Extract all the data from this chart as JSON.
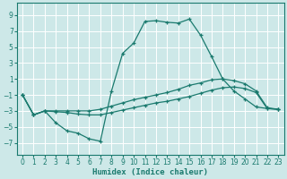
{
  "xlabel": "Humidex (Indice chaleur)",
  "background_color": "#cde8e8",
  "grid_color": "#b0d8d8",
  "line_color": "#1a7a6e",
  "xlim": [
    -0.5,
    23.5
  ],
  "ylim": [
    -8.5,
    10.5
  ],
  "xticks": [
    0,
    1,
    2,
    3,
    4,
    5,
    6,
    7,
    8,
    9,
    10,
    11,
    12,
    13,
    14,
    15,
    16,
    17,
    18,
    19,
    20,
    21,
    22,
    23
  ],
  "yticks": [
    -7,
    -5,
    -3,
    -1,
    1,
    3,
    5,
    7,
    9
  ],
  "line1_x": [
    0,
    1,
    2,
    3,
    4,
    5,
    6,
    7,
    8,
    9,
    10,
    11,
    12,
    13,
    14,
    15,
    16,
    17,
    18,
    19,
    20,
    21,
    22,
    23
  ],
  "line1_y": [
    -1,
    -3.5,
    -3,
    -4.5,
    -5.5,
    -5.8,
    -6.5,
    -6.8,
    -0.5,
    4.2,
    5.5,
    8.2,
    8.3,
    8.1,
    8.0,
    8.5,
    6.5,
    3.8,
    1.0,
    -0.5,
    -1.5,
    -2.5,
    -2.7,
    -2.8
  ],
  "line2_x": [
    0,
    1,
    2,
    3,
    4,
    5,
    6,
    7,
    8,
    9,
    10,
    11,
    12,
    13,
    14,
    15,
    16,
    17,
    18,
    19,
    20,
    21,
    22,
    23
  ],
  "line2_y": [
    -1,
    -3.5,
    -3,
    -3.0,
    -3.0,
    -3.0,
    -3.0,
    -2.8,
    -2.4,
    -2.0,
    -1.6,
    -1.3,
    -1.0,
    -0.7,
    -0.3,
    0.2,
    0.5,
    0.9,
    1.0,
    0.8,
    0.4,
    -0.5,
    -2.6,
    -2.8
  ],
  "line3_x": [
    0,
    1,
    2,
    3,
    4,
    5,
    6,
    7,
    8,
    9,
    10,
    11,
    12,
    13,
    14,
    15,
    16,
    17,
    18,
    19,
    20,
    21,
    22,
    23
  ],
  "line3_y": [
    -1,
    -3.5,
    -3,
    -3.1,
    -3.2,
    -3.4,
    -3.5,
    -3.5,
    -3.2,
    -2.9,
    -2.6,
    -2.3,
    -2.0,
    -1.8,
    -1.5,
    -1.2,
    -0.8,
    -0.4,
    -0.1,
    0.0,
    -0.2,
    -0.7,
    -2.7,
    -2.8
  ]
}
